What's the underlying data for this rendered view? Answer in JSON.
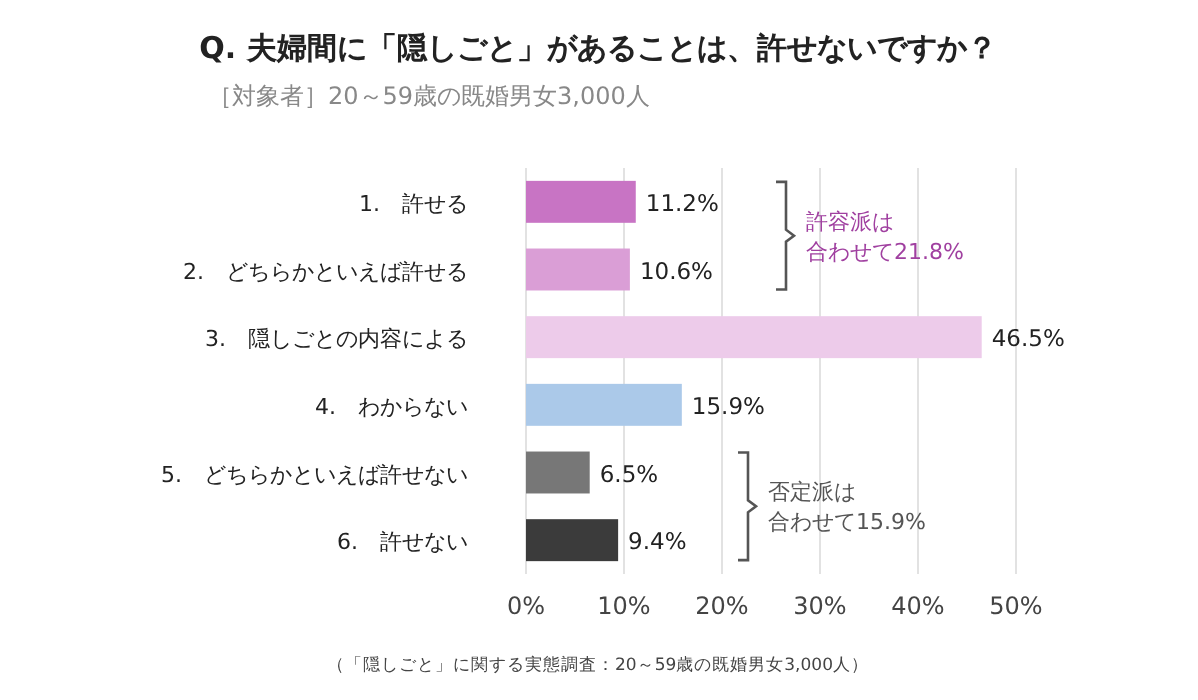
{
  "chart_data": {
    "type": "bar",
    "orientation": "horizontal",
    "title": "Q. 夫婦間に「隠しごと」があることは、許せないですか？",
    "subtitle": "［対象者］20～59歳の既婚男女3,000人",
    "categories": [
      "1.　許せる",
      "2.　どちらかといえば許せる",
      "3.　隠しごとの内容による",
      "4.　わからない",
      "5.　どちらかといえば許せない",
      "6.　許せない"
    ],
    "values": [
      11.2,
      10.6,
      46.5,
      15.9,
      6.5,
      9.4
    ],
    "colors": [
      "#c874c4",
      "#da9ed6",
      "#edcbea",
      "#abc9e9",
      "#777777",
      "#3b3b3b"
    ],
    "value_labels": [
      "11.2%",
      "10.6%",
      "46.5%",
      "15.9%",
      "6.5%",
      "9.4%"
    ],
    "xlim": [
      0,
      50
    ],
    "xticks": [
      {
        "value": 0,
        "label": "0%"
      },
      {
        "value": 10,
        "label": "10%"
      },
      {
        "value": 20,
        "label": "20%"
      },
      {
        "value": 30,
        "label": "30%"
      },
      {
        "value": 40,
        "label": "40%"
      },
      {
        "value": 50,
        "label": "50%"
      }
    ],
    "grid": "x",
    "annotations": [
      "許容派は合わせて21.8%",
      "否定派は合わせて15.9%",
      "（「隠しごと」に関する実態調査：20～59歳の既婚男女3,000人）"
    ]
  }
}
